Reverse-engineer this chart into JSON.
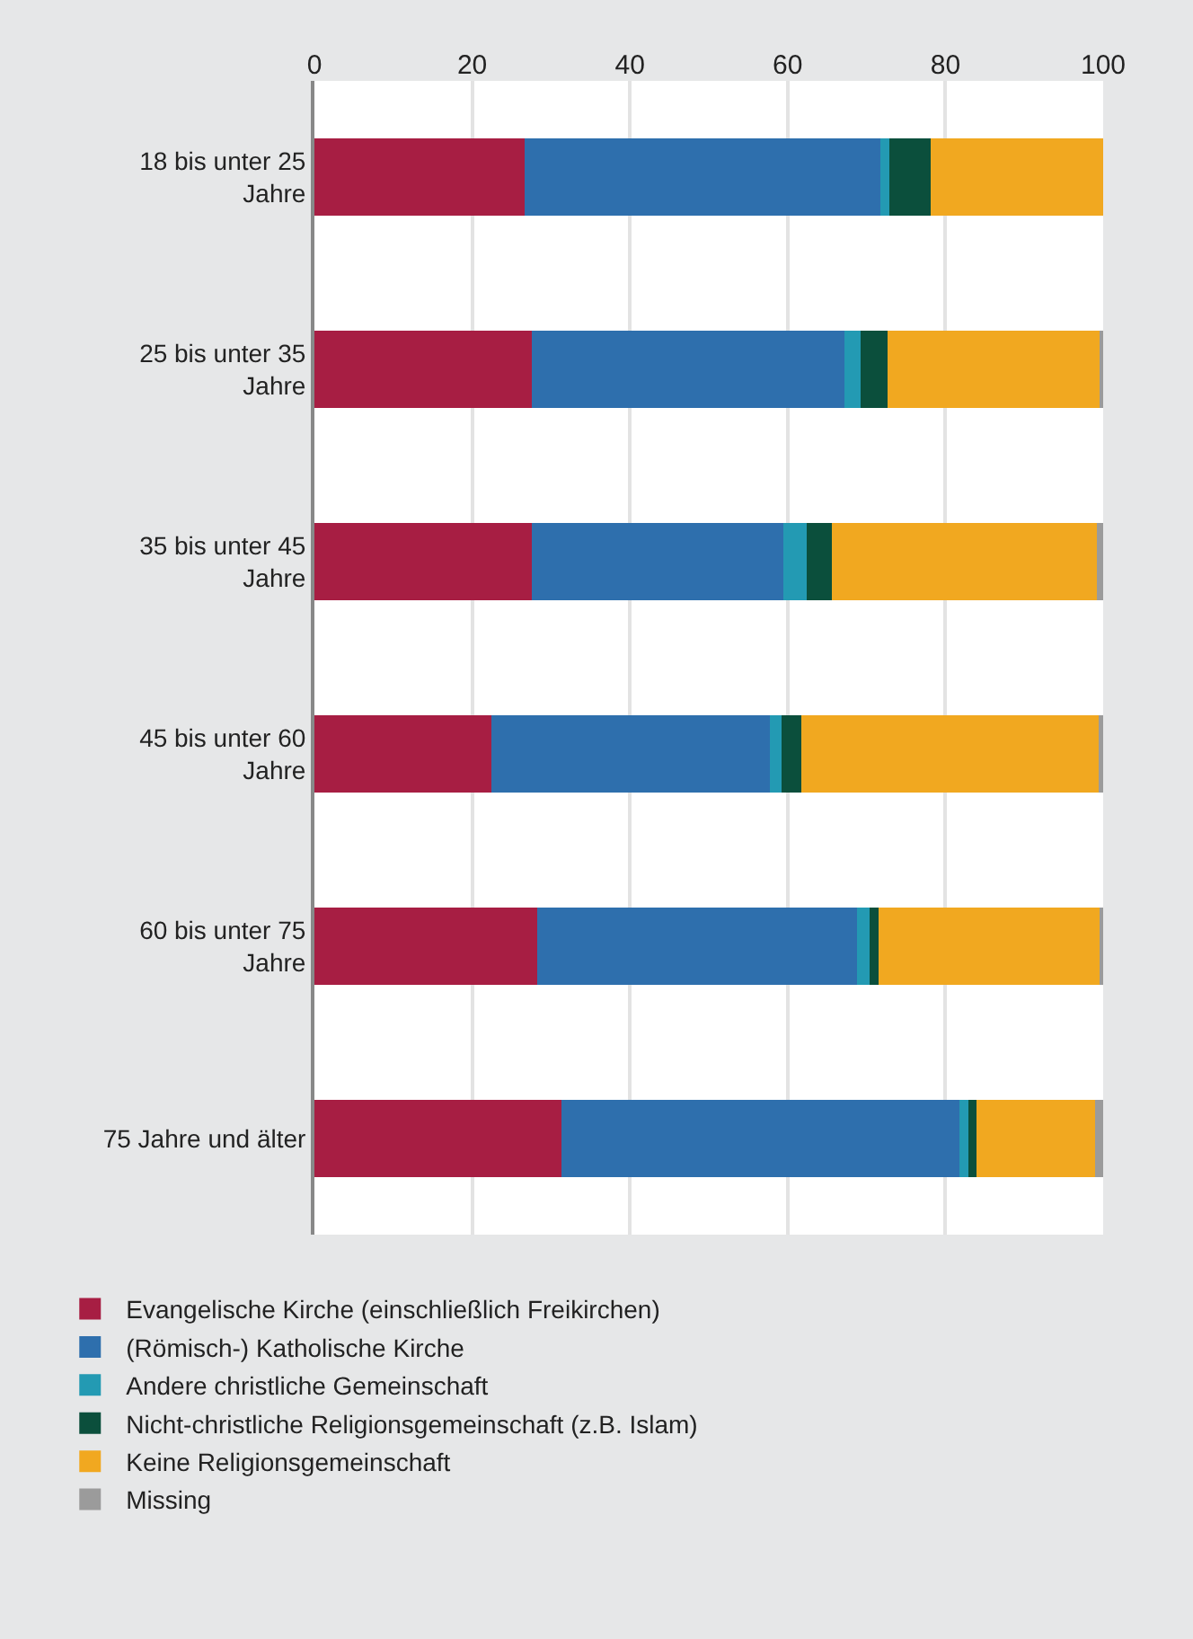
{
  "chart_data": {
    "type": "bar",
    "orientation": "horizontal",
    "stacked": true,
    "categories": [
      "18 bis unter 25 Jahre",
      "25 bis unter 35 Jahre",
      "35 bis unter 45 Jahre",
      "45 bis unter 60 Jahre",
      "60 bis unter 75 Jahre",
      "75 Jahre und älter"
    ],
    "series": [
      {
        "name": "Evangelische Kirche (einschließlich Freikirchen)",
        "color": "#a71e43",
        "values": [
          26.7,
          27.6,
          27.6,
          22.4,
          28.3,
          31.3
        ]
      },
      {
        "name": "(Römisch-) Katholische Kirche",
        "color": "#2e6fad",
        "values": [
          45.0,
          39.6,
          31.8,
          35.4,
          40.5,
          50.5
        ]
      },
      {
        "name": "Andere christliche Gemeinschaft",
        "color": "#239ab3",
        "values": [
          1.2,
          2.0,
          3.0,
          1.4,
          1.6,
          1.1
        ]
      },
      {
        "name": "Nicht-christliche Religionsgemeinschaft (z.B. Islam)",
        "color": "#0b4f3c",
        "values": [
          5.2,
          3.5,
          3.2,
          2.5,
          1.1,
          1.0
        ]
      },
      {
        "name": "Keine Religionsgemeinschaft",
        "color": "#f1a820",
        "values": [
          21.9,
          26.9,
          33.6,
          37.7,
          28.1,
          15.1
        ]
      },
      {
        "name": "Missing",
        "color": "#9b9b9b",
        "values": [
          0,
          0.4,
          0.8,
          0.6,
          0.4,
          1.0
        ]
      }
    ],
    "xlim": [
      0,
      100
    ],
    "xticks": [
      0,
      20,
      40,
      60,
      80,
      100
    ],
    "grid": "x",
    "legend": "bottom"
  }
}
